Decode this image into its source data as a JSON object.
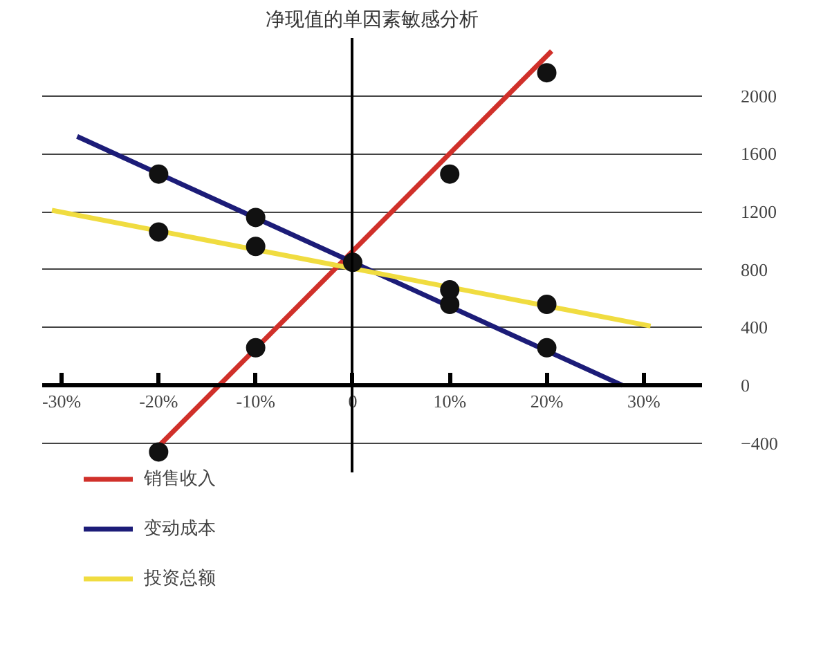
{
  "chart_data": {
    "type": "line",
    "title": "净现值的单因素敏感分析",
    "xlim": [
      -32,
      36
    ],
    "xticks": [
      {
        "value": -30,
        "label": "-30%"
      },
      {
        "value": -20,
        "label": "-20%"
      },
      {
        "value": -10,
        "label": "-10%"
      },
      0,
      {
        "value": 10,
        "label": "10%"
      },
      {
        "value": 20,
        "label": "20%"
      },
      {
        "value": 30,
        "label": "30%"
      }
    ],
    "ylim": [
      -600,
      2400
    ],
    "yticks": [
      -400,
      0,
      400,
      800,
      1200,
      1600,
      2000
    ],
    "grid": "y",
    "legend": "bottom left",
    "series": [
      {
        "name": "销售收入",
        "color": "#d0302a",
        "x": [
          -20,
          20.5
        ],
        "values": [
          -420,
          2310
        ]
      },
      {
        "name": "变动成本",
        "color": "#1c1c78",
        "x": [
          -28.4,
          27.8
        ],
        "values": [
          1720,
          0
        ]
      },
      {
        "name": "投资总额",
        "color": "#f0dc40",
        "x": [
          -31,
          30.7
        ],
        "values": [
          1210,
          410
        ]
      },
      {
        "type": "scatter",
        "marker": "circle",
        "color": "#111111",
        "x": [
          -20,
          -10,
          10,
          20,
          -20,
          -10,
          10,
          20,
          -20,
          -10,
          10,
          20,
          0
        ],
        "values": [
          -460,
          260,
          1460,
          2160,
          1460,
          1160,
          560,
          260,
          1060,
          960,
          660,
          560,
          850
        ]
      }
    ]
  }
}
